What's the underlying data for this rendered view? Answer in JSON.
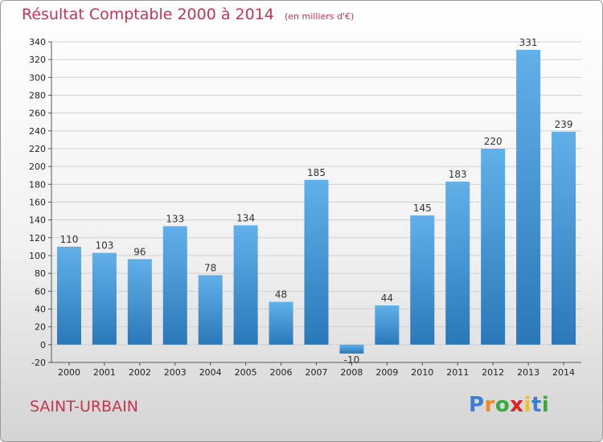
{
  "header": {
    "title": "Résultat Comptable 2000 à 2014",
    "subtitle": "(en milliers d'€)"
  },
  "footer": {
    "place": "SAINT-URBAIN",
    "brand": "Proxiti",
    "brand_letters": [
      {
        "ch": "P",
        "color": "#3a7fd0"
      },
      {
        "ch": "r",
        "color": "#f08a1c"
      },
      {
        "ch": "o",
        "color": "#3aaa3a"
      },
      {
        "ch": "x",
        "color": "#e02020"
      },
      {
        "ch": "i",
        "color": "#f0c020"
      },
      {
        "ch": "t",
        "color": "#3a7fd0"
      },
      {
        "ch": "i",
        "color": "#3aaa3a"
      }
    ]
  },
  "chart_data": {
    "type": "bar",
    "title": "Résultat Comptable 2000 à 2014",
    "subtitle": "(en milliers d'€)",
    "categories": [
      "2000",
      "2001",
      "2002",
      "2003",
      "2004",
      "2005",
      "2006",
      "2007",
      "2008",
      "2009",
      "2010",
      "2011",
      "2012",
      "2013",
      "2014"
    ],
    "values": [
      110,
      103,
      96,
      133,
      78,
      134,
      48,
      185,
      -10,
      44,
      145,
      183,
      220,
      331,
      239
    ],
    "ylim": [
      -20,
      340
    ],
    "yticks": [
      -20,
      0,
      20,
      40,
      60,
      80,
      100,
      120,
      140,
      160,
      180,
      200,
      220,
      240,
      260,
      280,
      300,
      320,
      340
    ],
    "grid": true,
    "legend": "none",
    "colors": {
      "bar_top": "#62b0ea",
      "bar_bottom": "#2a78b8",
      "grid": "#d0d0d0",
      "axis": "#555555"
    }
  }
}
